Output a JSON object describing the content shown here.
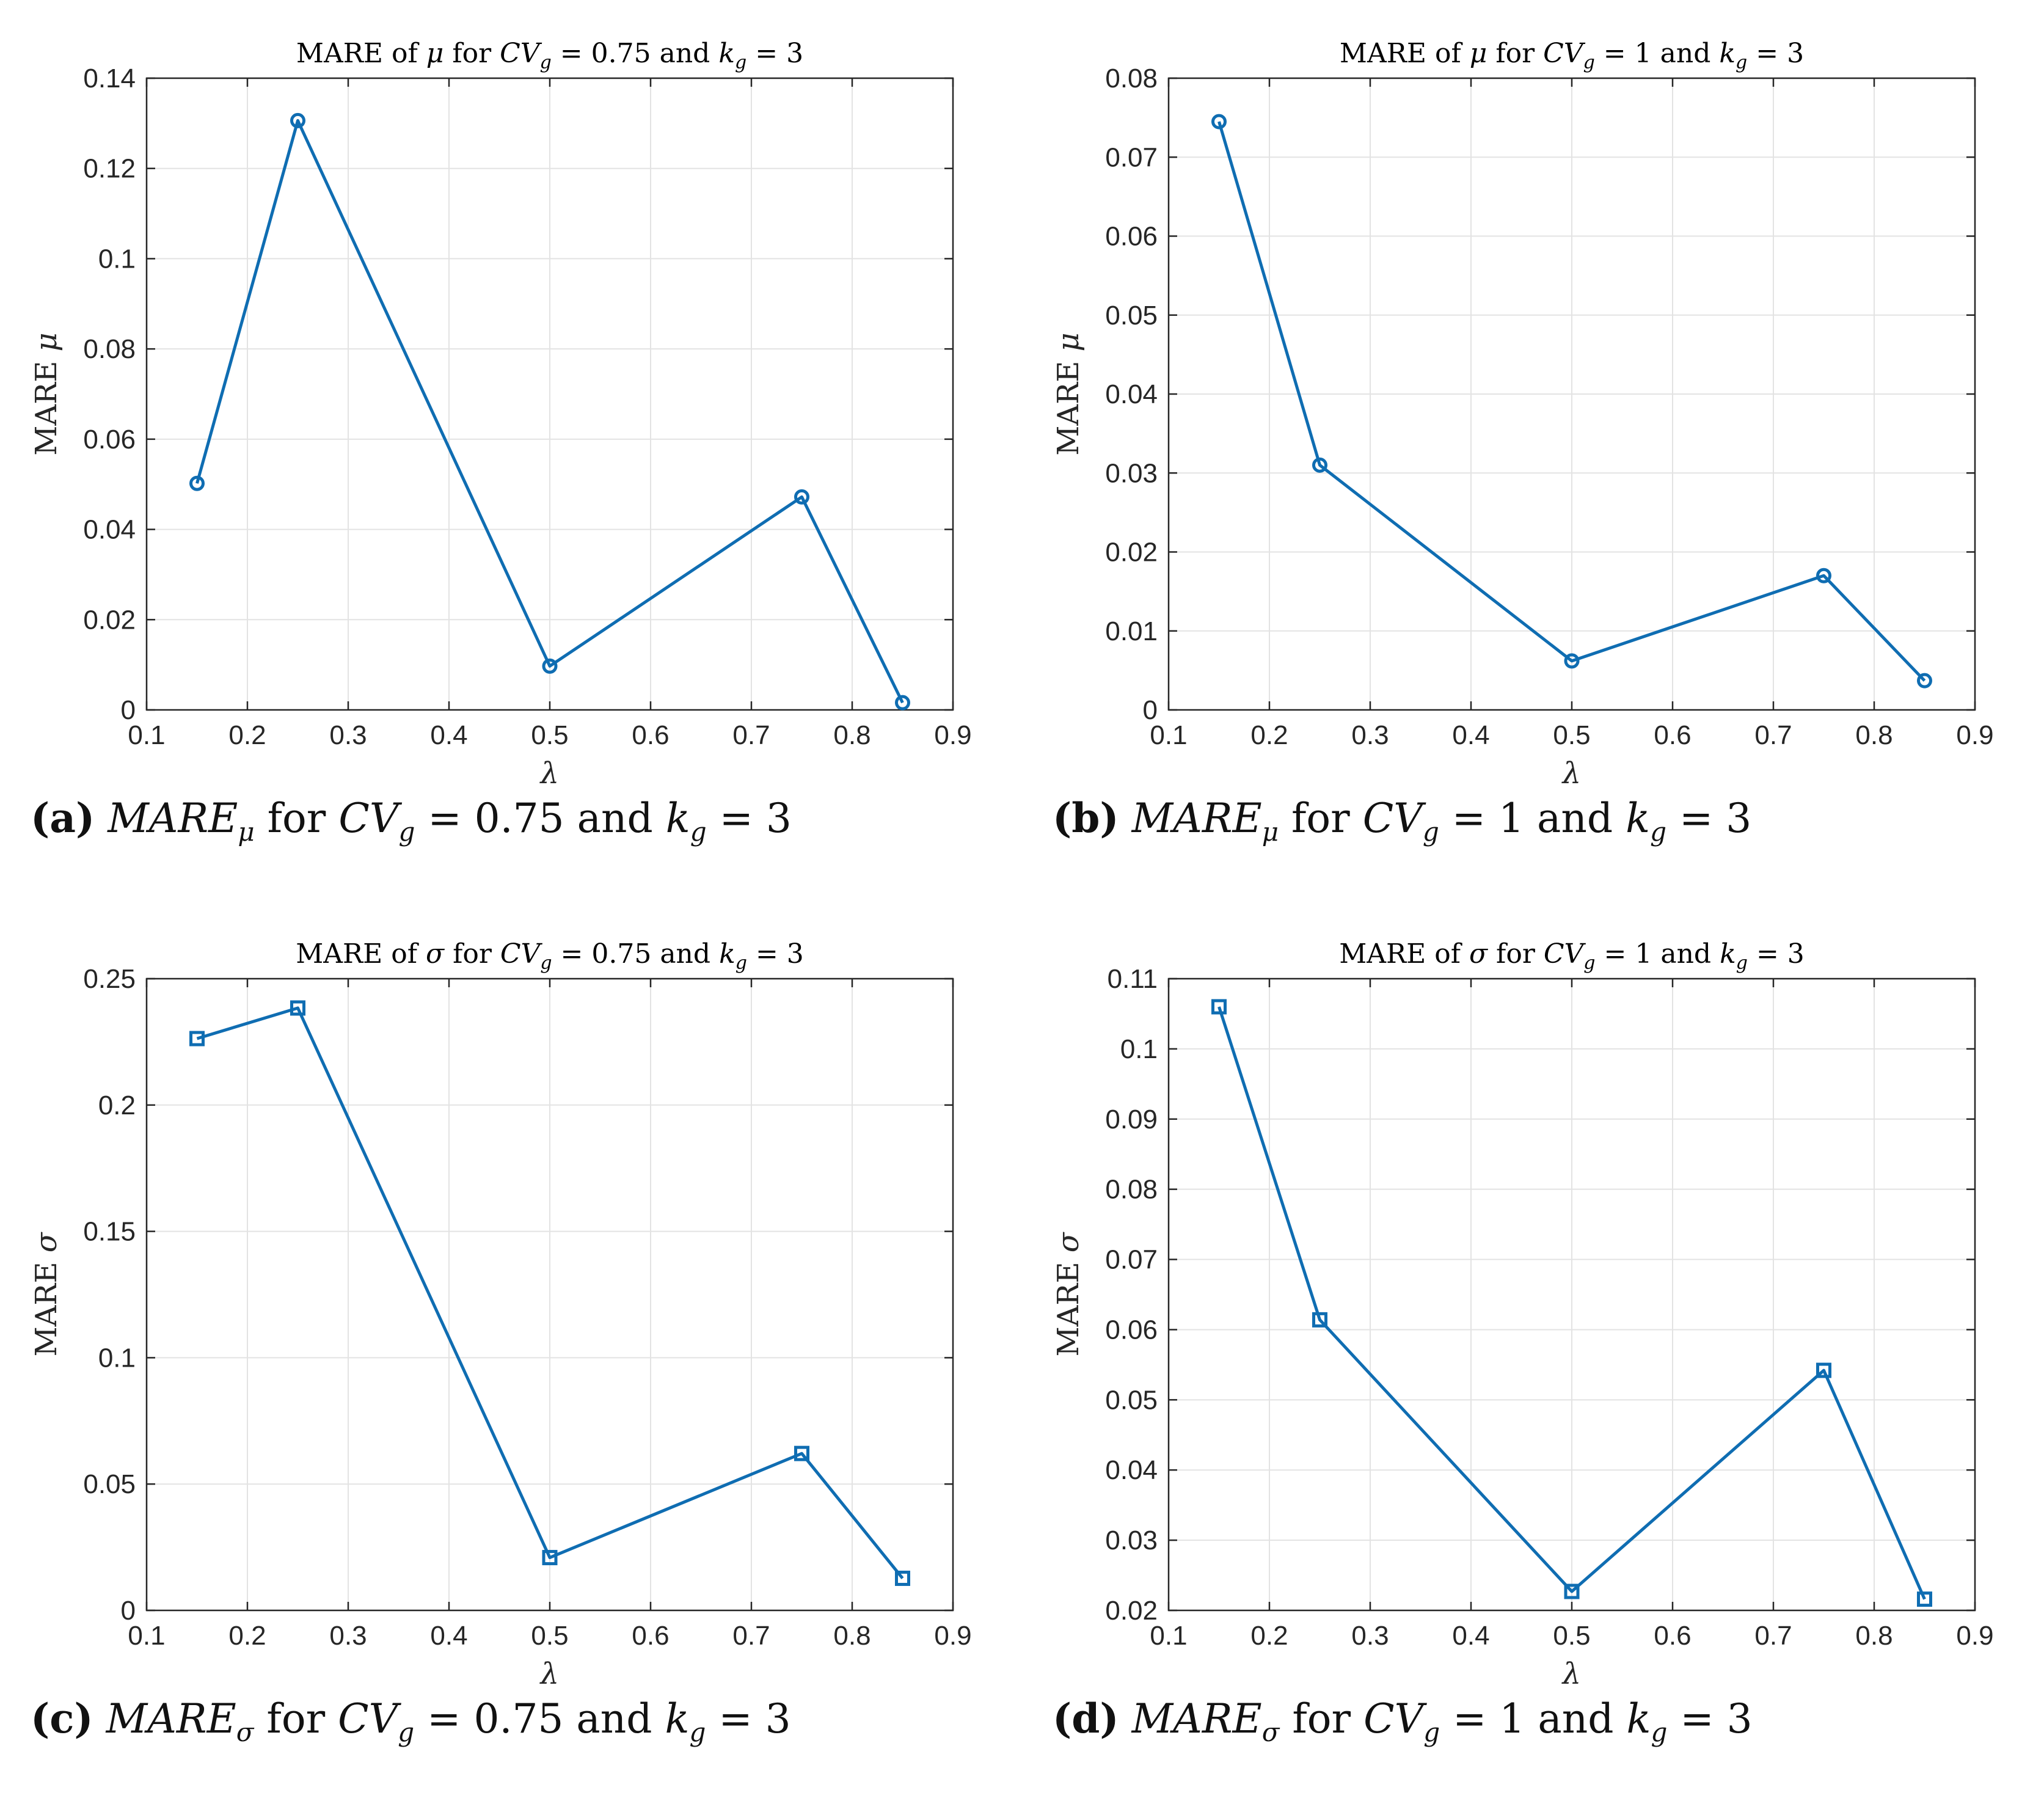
{
  "figure": {
    "colors": {
      "series": "#0f6db2",
      "grid": "#e3e3e3",
      "axis": "#262626"
    },
    "panels": [
      {
        "id": "a",
        "title": "MARE of μ for CV_g = 0.75 and k_g = 3",
        "caption": {
          "letter": "(a)",
          "metric": "MARE",
          "metric_sub": "μ",
          "text1": "for",
          "cv": "CV",
          "cv_sub": "g",
          "eq": "=",
          "cv_value": "0.75",
          "and": "and",
          "k": "k",
          "k_sub": "g",
          "k_value": "3"
        },
        "chart_data": {
          "type": "line",
          "marker": "circle",
          "title": {
            "prefix": "MARE of",
            "param": "μ",
            "mid": "for",
            "cv": "CV",
            "cv_sub": "g",
            "cv_value": "0.75",
            "and": "and",
            "k": "k",
            "k_sub": "g",
            "k_value": "3"
          },
          "xlabel": "λ",
          "ylabel": "MARE μ",
          "xlim": [
            0.1,
            0.9
          ],
          "ylim": [
            0,
            0.14
          ],
          "xticks": [
            "0.1",
            "0.2",
            "0.3",
            "0.4",
            "0.5",
            "0.6",
            "0.7",
            "0.8",
            "0.9"
          ],
          "yticks": [
            "0",
            "0.02",
            "0.04",
            "0.06",
            "0.08",
            "0.1",
            "0.12",
            "0.14"
          ],
          "grid": true,
          "x": [
            0.15,
            0.25,
            0.5,
            0.75,
            0.85
          ],
          "y": [
            0.0502,
            0.1306,
            0.0097,
            0.0472,
            0.0016
          ]
        }
      },
      {
        "id": "b",
        "title": "MARE of μ for CV_g = 1 and k_g = 3",
        "caption": {
          "letter": "(b)",
          "metric": "MARE",
          "metric_sub": "μ",
          "text1": "for",
          "cv": "CV",
          "cv_sub": "g",
          "eq": "=",
          "cv_value": "1",
          "and": "and",
          "k": "k",
          "k_sub": "g",
          "k_value": "3"
        },
        "chart_data": {
          "type": "line",
          "marker": "circle",
          "title": {
            "prefix": "MARE of",
            "param": "μ",
            "mid": "for",
            "cv": "CV",
            "cv_sub": "g",
            "cv_value": "1",
            "and": "and",
            "k": "k",
            "k_sub": "g",
            "k_value": "3"
          },
          "xlabel": "λ",
          "ylabel": "MARE μ",
          "xlim": [
            0.1,
            0.9
          ],
          "ylim": [
            0,
            0.08
          ],
          "xticks": [
            "0.1",
            "0.2",
            "0.3",
            "0.4",
            "0.5",
            "0.6",
            "0.7",
            "0.8",
            "0.9"
          ],
          "yticks": [
            "0",
            "0.01",
            "0.02",
            "0.03",
            "0.04",
            "0.05",
            "0.06",
            "0.07",
            "0.08"
          ],
          "grid": true,
          "x": [
            0.15,
            0.25,
            0.5,
            0.75,
            0.85
          ],
          "y": [
            0.0745,
            0.031,
            0.0062,
            0.017,
            0.0037
          ]
        }
      },
      {
        "id": "c",
        "title": "MARE of σ for CV_g = 0.75 and k_g = 3",
        "caption": {
          "letter": "(c)",
          "metric": "MARE",
          "metric_sub": "σ",
          "text1": "for",
          "cv": "CV",
          "cv_sub": "g",
          "eq": "=",
          "cv_value": "0.75",
          "and": "and",
          "k": "k",
          "k_sub": "g",
          "k_value": "3"
        },
        "chart_data": {
          "type": "line",
          "marker": "square",
          "title": {
            "prefix": "MARE of",
            "param": "σ",
            "mid": "for",
            "cv": "CV",
            "cv_sub": "g",
            "cv_value": "0.75",
            "and": "and",
            "k": "k",
            "k_sub": "g",
            "k_value": "3"
          },
          "xlabel": "λ",
          "ylabel": "MARE σ",
          "xlim": [
            0.1,
            0.9
          ],
          "ylim": [
            0,
            0.25
          ],
          "xticks": [
            "0.1",
            "0.2",
            "0.3",
            "0.4",
            "0.5",
            "0.6",
            "0.7",
            "0.8",
            "0.9"
          ],
          "yticks": [
            "0",
            "0.05",
            "0.1",
            "0.15",
            "0.2",
            "0.25"
          ],
          "grid": true,
          "x": [
            0.15,
            0.25,
            0.5,
            0.75,
            0.85
          ],
          "y": [
            0.2263,
            0.2384,
            0.0209,
            0.0621,
            0.0127
          ]
        }
      },
      {
        "id": "d",
        "title": "MARE of σ for CV_g = 1 and k_g = 3",
        "caption": {
          "letter": "(d)",
          "metric": "MARE",
          "metric_sub": "σ",
          "text1": "for",
          "cv": "CV",
          "cv_sub": "g",
          "eq": "=",
          "cv_value": "1",
          "and": "and",
          "k": "k",
          "k_sub": "g",
          "k_value": "3"
        },
        "chart_data": {
          "type": "line",
          "marker": "square",
          "title": {
            "prefix": "MARE of",
            "param": "σ",
            "mid": "for",
            "cv": "CV",
            "cv_sub": "g",
            "cv_value": "1",
            "and": "and",
            "k": "k",
            "k_sub": "g",
            "k_value": "3"
          },
          "xlabel": "λ",
          "ylabel": "MARE σ",
          "xlim": [
            0.1,
            0.9
          ],
          "ylim": [
            0.02,
            0.11
          ],
          "xticks": [
            "0.1",
            "0.2",
            "0.3",
            "0.4",
            "0.5",
            "0.6",
            "0.7",
            "0.8",
            "0.9"
          ],
          "yticks": [
            "0.02",
            "0.03",
            "0.04",
            "0.05",
            "0.06",
            "0.07",
            "0.08",
            "0.09",
            "0.1",
            "0.11"
          ],
          "grid": true,
          "x": [
            0.15,
            0.25,
            0.5,
            0.75,
            0.85
          ],
          "y": [
            0.106,
            0.0614,
            0.0227,
            0.0542,
            0.0216
          ]
        }
      }
    ]
  }
}
